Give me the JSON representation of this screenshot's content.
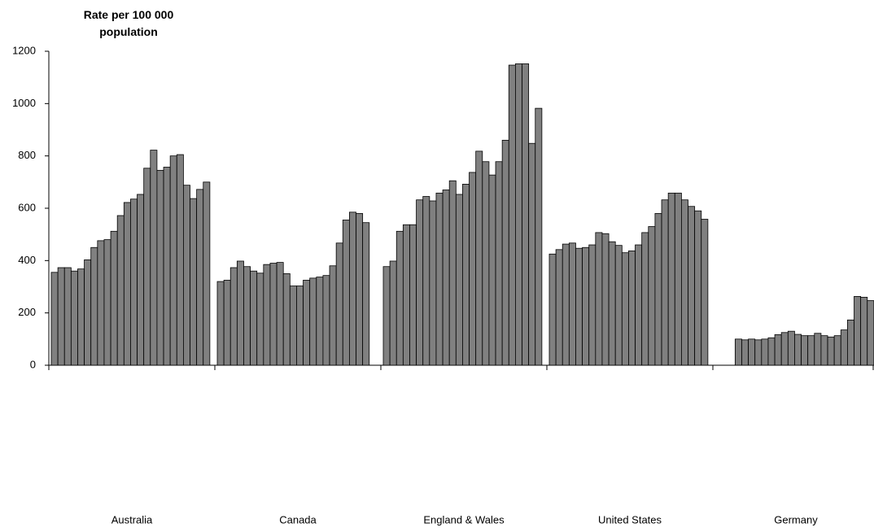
{
  "chart_data": {
    "type": "bar",
    "y_label": "Rate per 100 000 population",
    "categories": [
      "Australia",
      "Canada",
      "England & Wales",
      "United States",
      "Germany"
    ],
    "values": [
      [
        355,
        373,
        373,
        360,
        368,
        403,
        450,
        476,
        480,
        512,
        572,
        622,
        635,
        653,
        753,
        822,
        745,
        757,
        800,
        805,
        688,
        637,
        672,
        700
      ],
      [
        320,
        325,
        373,
        398,
        377,
        360,
        352,
        385,
        390,
        393,
        350,
        303,
        303,
        325,
        333,
        337,
        343,
        380,
        467,
        555,
        585,
        580,
        545,
        null
      ],
      [
        377,
        398,
        512,
        537,
        537,
        632,
        645,
        628,
        658,
        670,
        705,
        653,
        692,
        737,
        818,
        778,
        727,
        778,
        860,
        1147,
        1152,
        1152,
        848,
        982
      ],
      [
        425,
        442,
        463,
        467,
        447,
        450,
        460,
        507,
        503,
        472,
        458,
        430,
        437,
        460,
        507,
        530,
        580,
        632,
        658,
        658,
        632,
        607,
        590,
        558
      ],
      [
        null,
        null,
        null,
        100,
        97,
        100,
        97,
        100,
        105,
        117,
        125,
        130,
        118,
        113,
        113,
        122,
        113,
        108,
        113,
        135,
        173,
        263,
        260,
        247
      ]
    ],
    "color": "#808080",
    "ylim": [
      0,
      1200
    ],
    "yticks": [
      0,
      200,
      400,
      600,
      800,
      1000,
      1200
    ],
    "grid": false
  }
}
